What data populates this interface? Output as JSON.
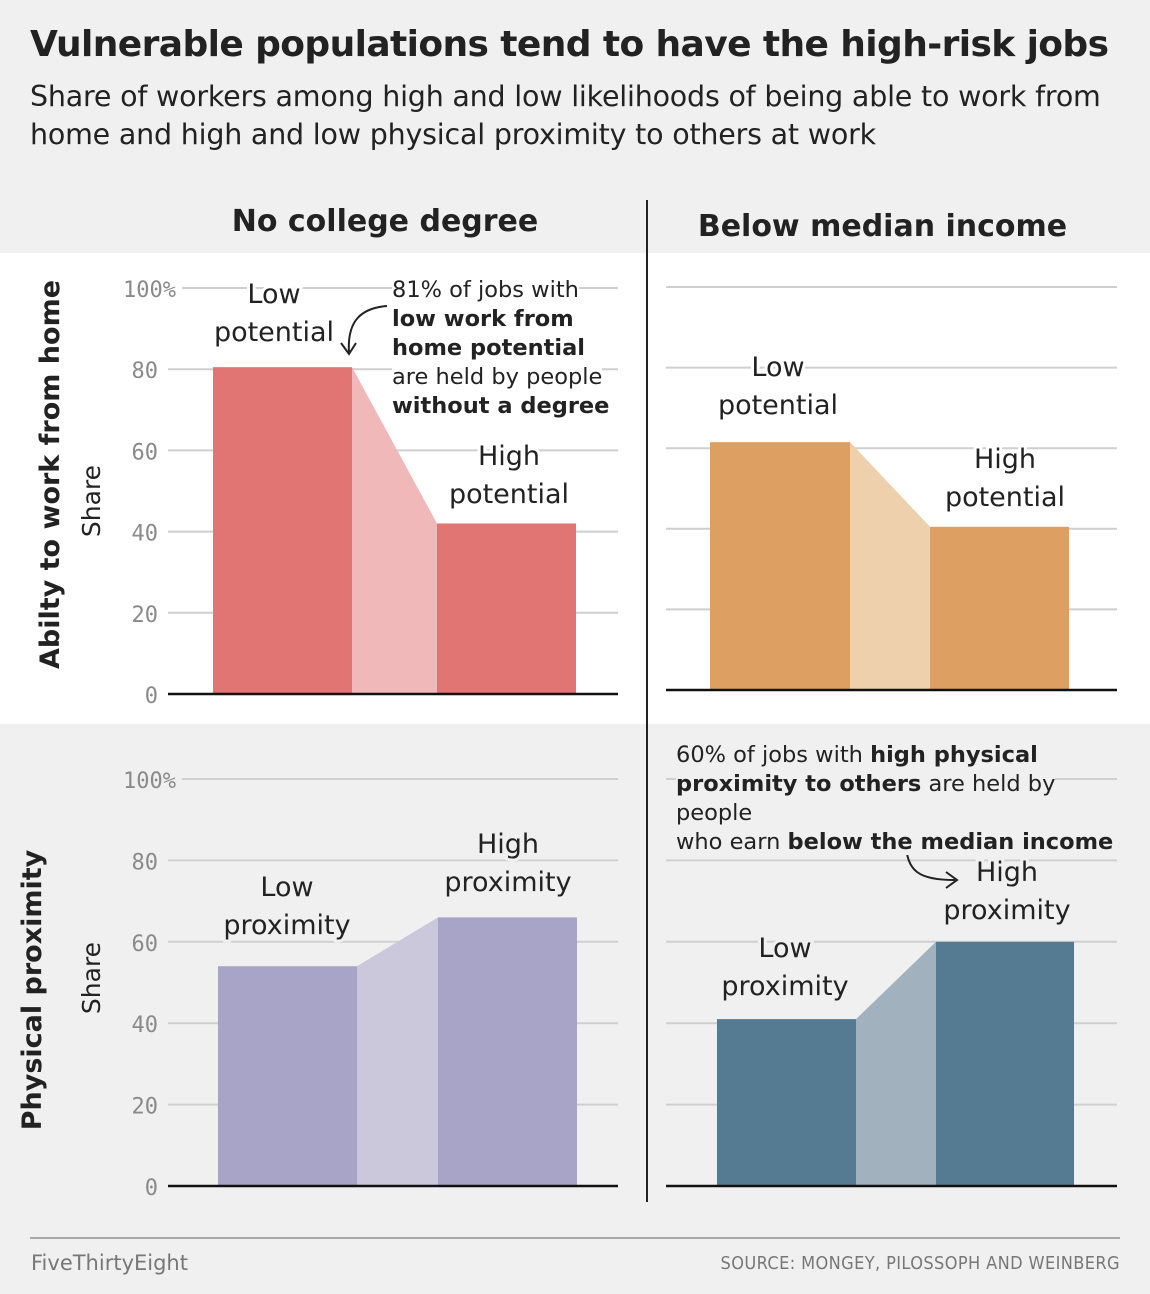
{
  "title": "Vulnerable populations tend to have the high-risk jobs",
  "subtitle": "Share of workers among high and low likelihoods of being able to work from home and high and low physical proximity to others at work",
  "columns": [
    "No college degree",
    "Below median income"
  ],
  "rows": [
    "Abilty to work from home",
    "Physical proximity"
  ],
  "footer": {
    "brand": "FiveThirtyEight",
    "source": "SOURCE: MONGEY, PILOSSOPH AND WEINBERG"
  },
  "annotations": {
    "top_left": {
      "line1": "81% of jobs with",
      "bold1": "low work from",
      "bold2": "home potential",
      "line2": "are held by people",
      "bold3": "without a degree"
    },
    "bottom_right": {
      "t1": "60% of jobs with ",
      "b1": "high physical",
      "b2": "proximity to others",
      "t2": " are held by people",
      "t3": "who earn ",
      "b3": "below the median income"
    }
  },
  "chart_data": [
    {
      "type": "bar",
      "panel": "top-left",
      "row": "Abilty to work from home",
      "column": "No college degree",
      "ylabel": "Share",
      "ylim": [
        0,
        100
      ],
      "yticks": [
        0,
        20,
        40,
        60,
        80,
        100
      ],
      "ytick_labels": [
        "0",
        "20",
        "40",
        "60",
        "80",
        "100%"
      ],
      "categories": [
        [
          "Low",
          "potential"
        ],
        [
          "High",
          "potential"
        ]
      ],
      "values": [
        80.5,
        42
      ],
      "colors": {
        "bar": "#e07573",
        "connector": "#f0b8b8"
      }
    },
    {
      "type": "bar",
      "panel": "top-right",
      "row": "Abilty to work from home",
      "column": "Below median income",
      "ylabel": "",
      "ylim": [
        0,
        100
      ],
      "yticks": [
        0,
        20,
        40,
        60,
        80,
        100
      ],
      "ytick_labels": [],
      "categories": [
        [
          "Low",
          "potential"
        ],
        [
          "High",
          "potential"
        ]
      ],
      "values": [
        61.5,
        40.5
      ],
      "colors": {
        "bar": "#dea062",
        "connector": "#efd0ad"
      }
    },
    {
      "type": "bar",
      "panel": "bottom-left",
      "row": "Physical proximity",
      "column": "No college degree",
      "ylabel": "Share",
      "ylim": [
        0,
        100
      ],
      "yticks": [
        0,
        20,
        40,
        60,
        80,
        100
      ],
      "ytick_labels": [
        "0",
        "20",
        "40",
        "60",
        "80",
        "100%"
      ],
      "categories": [
        [
          "Low",
          "proximity"
        ],
        [
          "High",
          "proximity"
        ]
      ],
      "values": [
        54,
        66
      ],
      "colors": {
        "bar": "#a8a4c8",
        "connector": "#cbc8dc"
      }
    },
    {
      "type": "bar",
      "panel": "bottom-right",
      "row": "Physical proximity",
      "column": "Below median income",
      "ylabel": "",
      "ylim": [
        0,
        100
      ],
      "yticks": [
        0,
        20,
        40,
        60,
        80,
        100
      ],
      "ytick_labels": [],
      "categories": [
        [
          "Low",
          "proximity"
        ],
        [
          "High",
          "proximity"
        ]
      ],
      "values": [
        41,
        60
      ],
      "colors": {
        "bar": "#557b92",
        "connector": "#a1b1bd"
      }
    }
  ]
}
